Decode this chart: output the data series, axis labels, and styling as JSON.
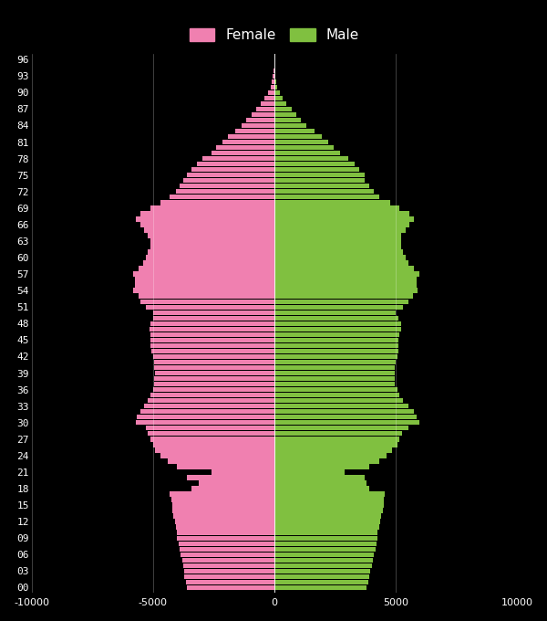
{
  "background_color": "#000000",
  "female_color": "#f080b0",
  "male_color": "#80c040",
  "xlim": [
    -10000,
    10000
  ],
  "xticks": [
    -10000,
    -5000,
    0,
    5000,
    10000
  ],
  "xtick_labels": [
    "-10000",
    "-5000",
    "0",
    "5000",
    "10000"
  ],
  "ages": [
    0,
    1,
    2,
    3,
    4,
    5,
    6,
    7,
    8,
    9,
    10,
    11,
    12,
    13,
    14,
    15,
    16,
    17,
    18,
    19,
    20,
    21,
    22,
    23,
    24,
    25,
    26,
    27,
    28,
    29,
    30,
    31,
    32,
    33,
    34,
    35,
    36,
    37,
    38,
    39,
    40,
    41,
    42,
    43,
    44,
    45,
    46,
    47,
    48,
    49,
    50,
    51,
    52,
    53,
    54,
    55,
    56,
    57,
    58,
    59,
    60,
    61,
    62,
    63,
    64,
    65,
    66,
    67,
    68,
    69,
    70,
    71,
    72,
    73,
    74,
    75,
    76,
    77,
    78,
    79,
    80,
    81,
    82,
    83,
    84,
    85,
    86,
    87,
    88,
    89,
    90,
    91,
    92,
    93,
    94,
    95,
    96
  ],
  "female_values": [
    3600,
    3650,
    3700,
    3700,
    3750,
    3800,
    3850,
    3900,
    3950,
    4000,
    4000,
    4050,
    4100,
    4150,
    4200,
    4200,
    4250,
    4300,
    3400,
    3100,
    3600,
    2600,
    4000,
    4400,
    4700,
    4900,
    5000,
    5100,
    5200,
    5300,
    5700,
    5650,
    5500,
    5350,
    5200,
    5100,
    5000,
    4950,
    4950,
    4900,
    4950,
    4950,
    5000,
    5050,
    5100,
    5100,
    5100,
    5150,
    5100,
    5000,
    5000,
    5300,
    5500,
    5600,
    5800,
    5750,
    5750,
    5800,
    5600,
    5400,
    5300,
    5200,
    5100,
    5100,
    5200,
    5350,
    5500,
    5700,
    5500,
    5100,
    4700,
    4300,
    4050,
    3900,
    3750,
    3600,
    3400,
    3200,
    2950,
    2600,
    2400,
    2150,
    1900,
    1600,
    1350,
    1150,
    950,
    750,
    550,
    400,
    270,
    165,
    100,
    60,
    35,
    18,
    8
  ],
  "male_values": [
    3800,
    3850,
    3900,
    3950,
    4000,
    4050,
    4100,
    4150,
    4200,
    4250,
    4250,
    4300,
    4350,
    4400,
    4450,
    4500,
    4500,
    4550,
    3900,
    3800,
    3700,
    2900,
    3900,
    4300,
    4600,
    4850,
    5050,
    5150,
    5250,
    5500,
    5950,
    5850,
    5750,
    5500,
    5300,
    5150,
    5050,
    4950,
    4950,
    4950,
    4950,
    5000,
    5050,
    5100,
    5100,
    5100,
    5150,
    5200,
    5200,
    5100,
    5000,
    5300,
    5500,
    5700,
    5900,
    5850,
    5850,
    5950,
    5750,
    5500,
    5400,
    5300,
    5200,
    5200,
    5200,
    5400,
    5550,
    5750,
    5550,
    5150,
    4750,
    4300,
    4100,
    3900,
    3700,
    3700,
    3500,
    3300,
    3050,
    2700,
    2450,
    2200,
    1950,
    1650,
    1300,
    1100,
    900,
    700,
    500,
    350,
    210,
    130,
    75,
    42,
    22,
    10,
    4
  ],
  "ytick_ages": [
    0,
    3,
    6,
    9,
    12,
    15,
    18,
    21,
    24,
    27,
    30,
    33,
    36,
    39,
    42,
    45,
    48,
    51,
    54,
    57,
    60,
    63,
    66,
    69,
    72,
    75,
    78,
    81,
    84,
    87,
    90,
    93,
    96
  ],
  "ytick_labels": [
    "00",
    "03",
    "06",
    "09",
    "12",
    "15",
    "18",
    "21",
    "24",
    "27",
    "30",
    "33",
    "36",
    "39",
    "42",
    "45",
    "48",
    "51",
    "54",
    "57",
    "60",
    "63",
    "66",
    "69",
    "72",
    "75",
    "78",
    "81",
    "84",
    "87",
    "90",
    "93",
    "96"
  ],
  "grid_color": "#ffffff",
  "text_color": "#ffffff",
  "bar_height": 0.9,
  "figsize": [
    6.0,
    6.8
  ],
  "dpi": 100
}
